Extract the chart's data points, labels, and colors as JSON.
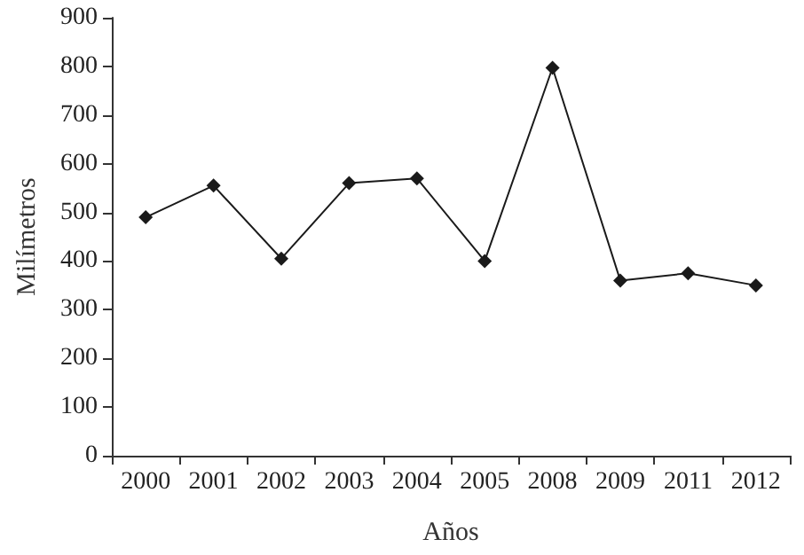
{
  "chart_data": {
    "type": "line",
    "xlabel": "Años",
    "ylabel": "Milímetros",
    "categories": [
      "2000",
      "2001",
      "2002",
      "2003",
      "2004",
      "2005",
      "2008",
      "2009",
      "2011",
      "2012"
    ],
    "values": [
      490,
      555,
      405,
      560,
      570,
      400,
      797,
      360,
      375,
      350
    ],
    "color": "#1a1a1a",
    "marker": "diamond",
    "line_style": "solid",
    "ylim": [
      0,
      900
    ],
    "yticks": [
      0,
      100,
      200,
      300,
      400,
      500,
      600,
      700,
      800,
      900
    ],
    "grid": false
  }
}
